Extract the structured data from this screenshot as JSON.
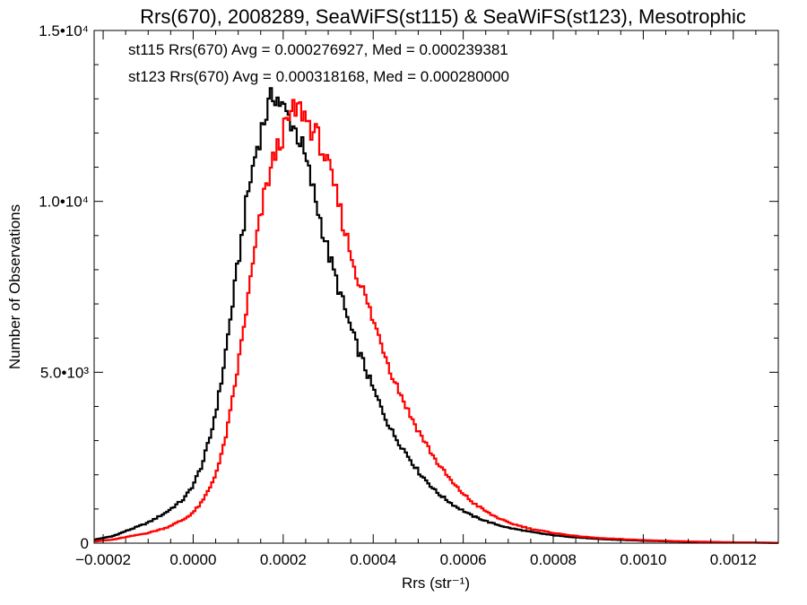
{
  "chart_data": {
    "type": "histogram",
    "title": "Rrs(670), 2008289, SeaWiFS(st115) & SeaWiFS(st123), Mesotrophic",
    "xlabel": "Rrs (str⁻¹)",
    "ylabel": "Number of Observations",
    "xlim": [
      -0.00022,
      0.0013
    ],
    "ylim": [
      0,
      15000
    ],
    "xticks": [
      {
        "value": -0.0002,
        "label": "−0.0002"
      },
      {
        "value": 0.0,
        "label": "0.0000"
      },
      {
        "value": 0.0002,
        "label": "0.0002"
      },
      {
        "value": 0.0004,
        "label": "0.0004"
      },
      {
        "value": 0.0006,
        "label": "0.0006"
      },
      {
        "value": 0.0008,
        "label": "0.0008"
      },
      {
        "value": 0.001,
        "label": "0.0010"
      },
      {
        "value": 0.0012,
        "label": "0.0012"
      }
    ],
    "yticks": [
      {
        "value": 0,
        "label": "0"
      },
      {
        "value": 5000,
        "label": "5.0•10³"
      },
      {
        "value": 10000,
        "label": "1.0•10⁴"
      },
      {
        "value": 15000,
        "label": "1.5•10⁴"
      }
    ],
    "grid": false,
    "annotations": [
      {
        "text": "st115 Rrs(670) Avg = 0.000276927, Med = 0.000239381",
        "color": "#000000"
      },
      {
        "text": "st123 Rrs(670) Avg = 0.000318168, Med = 0.000280000",
        "color": "#ff0000"
      }
    ],
    "series": [
      {
        "color": "#000000",
        "x": [
          -0.00022,
          -0.00018,
          -0.00014,
          -0.0001,
          -6e-05,
          -2e-05,
          0.0,
          2e-05,
          4e-05,
          6e-05,
          8e-05,
          0.0001,
          0.00012,
          0.00014,
          0.00016,
          0.00018,
          0.0002,
          0.00022,
          0.00024,
          0.00026,
          0.00028,
          0.0003,
          0.00032,
          0.00034,
          0.00036,
          0.00038,
          0.0004,
          0.00042,
          0.00044,
          0.00046,
          0.00048,
          0.0005,
          0.00054,
          0.00058,
          0.00062,
          0.00066,
          0.0007,
          0.00075,
          0.0008,
          0.00085,
          0.0009,
          0.001,
          0.0011,
          0.0012,
          0.0013
        ],
        "y": [
          100,
          200,
          400,
          600,
          900,
          1300,
          1700,
          2300,
          3200,
          4500,
          6300,
          8200,
          10100,
          11500,
          12500,
          13200,
          12700,
          12300,
          11700,
          10700,
          9600,
          8500,
          7600,
          6700,
          5900,
          5200,
          4500,
          3900,
          3300,
          2900,
          2500,
          2100,
          1500,
          1100,
          800,
          600,
          450,
          330,
          230,
          170,
          120,
          70,
          40,
          20,
          10
        ]
      },
      {
        "color": "#ff0000",
        "x": [
          -0.00022,
          -0.00018,
          -0.00014,
          -0.0001,
          -6e-05,
          -2e-05,
          0.0,
          2e-05,
          4e-05,
          6e-05,
          8e-05,
          0.0001,
          0.00012,
          0.00014,
          0.00016,
          0.00018,
          0.0002,
          0.00022,
          0.00024,
          0.00026,
          0.00028,
          0.0003,
          0.00032,
          0.00034,
          0.00036,
          0.00038,
          0.0004,
          0.00042,
          0.00044,
          0.00046,
          0.00048,
          0.0005,
          0.00054,
          0.00058,
          0.00062,
          0.00066,
          0.0007,
          0.00075,
          0.0008,
          0.00085,
          0.0009,
          0.001,
          0.0011,
          0.0012,
          0.0013
        ],
        "y": [
          50,
          100,
          200,
          300,
          450,
          700,
          900,
          1200,
          1700,
          2400,
          3600,
          5200,
          7000,
          8800,
          10300,
          11300,
          12000,
          12600,
          12700,
          12200,
          11800,
          11000,
          10100,
          9000,
          8000,
          7300,
          6500,
          5800,
          5000,
          4400,
          3800,
          3300,
          2400,
          1700,
          1200,
          850,
          600,
          420,
          300,
          210,
          150,
          90,
          50,
          25,
          10
        ]
      }
    ]
  }
}
